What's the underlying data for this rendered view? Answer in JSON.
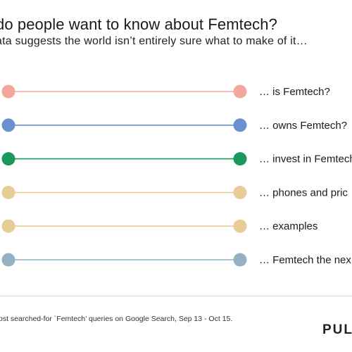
{
  "header": {
    "title": "do people want to know about Femtech?",
    "subtitle": "ata suggests the world isn’t entirely sure what to make of it…"
  },
  "chart_data": {
    "type": "dumbbell",
    "rows": [
      {
        "label": "… is Femtech?",
        "color": "#f4a89b"
      },
      {
        "label": "… owns Femtech?",
        "color": "#6b8fcf"
      },
      {
        "label": "… invest in Femtech",
        "color": "#1a9a5a"
      },
      {
        "label": "… phones and pric",
        "color": "#e8cc98"
      },
      {
        "label": "… examples",
        "color": "#e8cc98"
      },
      {
        "label": "… Femtech the nex",
        "color": "#93b1c0"
      }
    ]
  },
  "footer": {
    "note": "ost searched-for `Femtech’ queries on Google Search, Sep 13 - Oct 15.",
    "brand": "PUL"
  }
}
